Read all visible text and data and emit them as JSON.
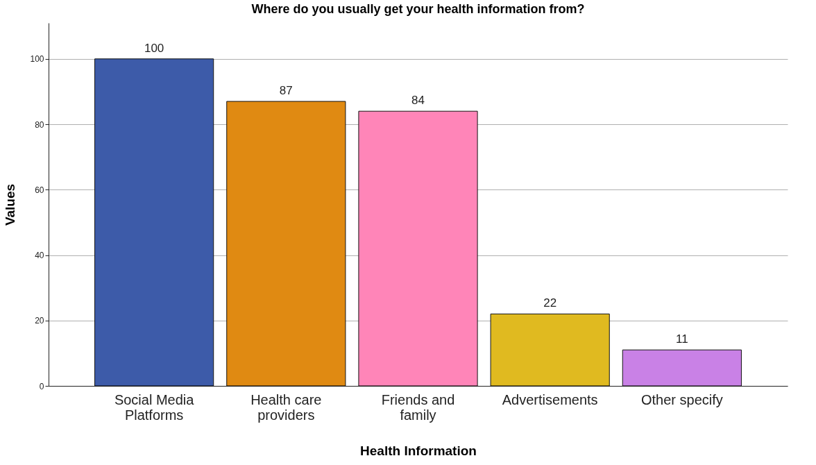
{
  "chart_data": {
    "type": "bar",
    "title": "Where do you usually get your health information from?",
    "xlabel": "Health Information",
    "ylabel": "Values",
    "categories": [
      "Social Media Platforms",
      "Health care providers",
      "Friends and family",
      "Advertisements",
      "Other specify"
    ],
    "values": [
      100,
      87,
      84,
      22,
      11
    ],
    "colors": [
      "#3d5ba9",
      "#e08a12",
      "#ff85b8",
      "#e0ba20",
      "#c981e6"
    ],
    "ylim": [
      0,
      111
    ],
    "yticks": [
      0,
      20,
      40,
      60,
      80,
      100
    ],
    "grid": "y",
    "data_labels": true
  }
}
